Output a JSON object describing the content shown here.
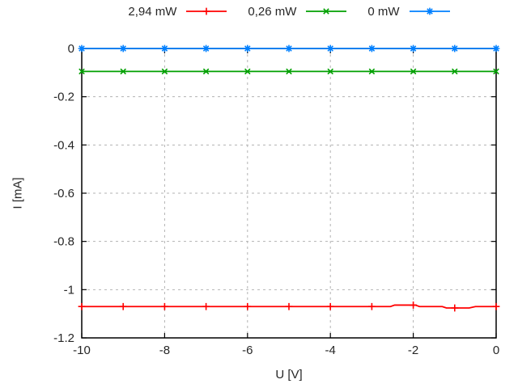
{
  "page": {
    "background": "#ffffff",
    "border_color": "#000000",
    "grid_color": "#b3b3b3",
    "text_color": "#262626"
  },
  "legend": {
    "items": [
      {
        "label": "2,94 mW",
        "marker": "plus-marker",
        "color": "#ff0000"
      },
      {
        "label": "0,26 mW",
        "marker": "cross-marker",
        "color": "#00a000"
      },
      {
        "label": "0 mW",
        "marker": "asterisk-marker",
        "color": "#0080ff"
      }
    ]
  },
  "axes": {
    "xlabel": "U [V]",
    "ylabel": "I [mA]",
    "x_ticks": [
      -10,
      -8,
      -6,
      -4,
      -2,
      0
    ],
    "x_tick_labels": [
      "-10",
      "-8",
      "-6",
      "-4",
      "-2",
      "0"
    ],
    "y_ticks": [
      0,
      -0.2,
      -0.4,
      -0.6,
      -0.8,
      -1,
      -1.2
    ],
    "y_tick_labels": [
      "0",
      "-0.2",
      "-0.4",
      "-0.6",
      "-0.8",
      "-1",
      "-1.2"
    ]
  },
  "chart_data": {
    "type": "line",
    "title": "",
    "xlabel": "U [V]",
    "ylabel": "I [mA]",
    "xlim": [
      -10,
      0
    ],
    "ylim": [
      -1.2,
      0
    ],
    "grid": true,
    "grid_style": "dashed",
    "legend_position": "top-center-outside",
    "x": [
      -10,
      -9,
      -8,
      -7,
      -6,
      -5,
      -4,
      -3,
      -2,
      -1,
      0
    ],
    "series": [
      {
        "name": "2,94 mW",
        "color": "#ff0000",
        "marker": "plus",
        "values": [
          -1.07,
          -1.07,
          -1.07,
          -1.07,
          -1.07,
          -1.07,
          -1.07,
          -1.07,
          -1.064,
          -1.076,
          -1.07
        ],
        "line_points": [
          [
            -10,
            -1.07
          ],
          [
            -2.55,
            -1.07
          ],
          [
            -2.45,
            -1.064
          ],
          [
            -1.95,
            -1.064
          ],
          [
            -1.85,
            -1.07
          ],
          [
            -1.3,
            -1.07
          ],
          [
            -1.2,
            -1.076
          ],
          [
            -0.65,
            -1.076
          ],
          [
            -0.5,
            -1.07
          ],
          [
            0,
            -1.07
          ]
        ]
      },
      {
        "name": "0,26 mW",
        "color": "#00a000",
        "marker": "cross",
        "values": [
          -0.095,
          -0.095,
          -0.095,
          -0.095,
          -0.095,
          -0.095,
          -0.095,
          -0.095,
          -0.095,
          -0.095,
          -0.095
        ]
      },
      {
        "name": "0 mW",
        "color": "#0080ff",
        "marker": "asterisk",
        "values": [
          0,
          0,
          0,
          0,
          0,
          0,
          0,
          0,
          0,
          0,
          0
        ]
      }
    ]
  }
}
